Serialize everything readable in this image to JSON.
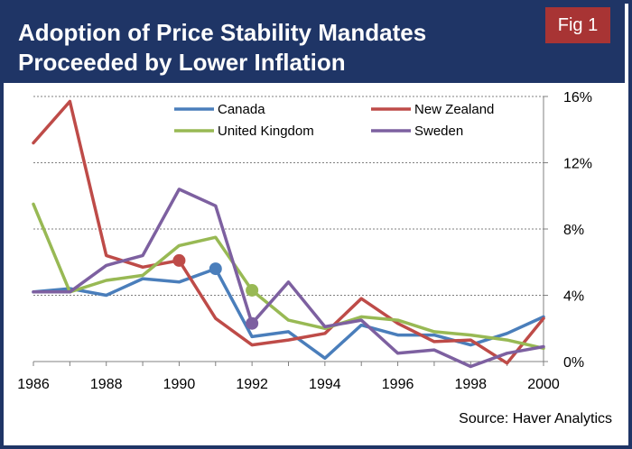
{
  "header": {
    "title": "Adoption of Price Stability Mandates\nProceeded by Lower Inflation",
    "fig_label": "Fig 1"
  },
  "source": "Source: Haver Analytics",
  "colors": {
    "frame": "#1f3566",
    "fig_label_bg": "#a83434"
  },
  "chart_data": {
    "type": "line",
    "title": "Adoption of Price Stability Mandates Proceeded by Lower Inflation",
    "xlabel": "",
    "ylabel": "",
    "x": [
      1986,
      1987,
      1988,
      1989,
      1990,
      1991,
      1992,
      1993,
      1994,
      1995,
      1996,
      1997,
      1998,
      1999,
      2000
    ],
    "xticks": [
      1986,
      1988,
      1990,
      1992,
      1994,
      1996,
      1998,
      2000
    ],
    "xtick_labels": [
      "1986",
      "1988",
      "1990",
      "1992",
      "1994",
      "1996",
      "1998",
      "2000"
    ],
    "xlim": [
      1986,
      2000
    ],
    "ylim": [
      0,
      16
    ],
    "yticks": [
      0,
      4,
      8,
      12,
      16
    ],
    "ytick_labels": [
      "0%",
      "4%",
      "8%",
      "12%",
      "16%"
    ],
    "grid": "horizontal dotted",
    "legend_position": "top",
    "series": [
      {
        "name": "Canada",
        "color": "#4a7ebb",
        "values": [
          4.2,
          4.4,
          4.0,
          5.0,
          4.8,
          5.6,
          1.5,
          1.8,
          0.2,
          2.2,
          1.6,
          1.6,
          1.0,
          1.7,
          2.7
        ],
        "marker_year": 1991
      },
      {
        "name": "New Zealand",
        "color": "#be4b48",
        "values": [
          13.2,
          15.7,
          6.4,
          5.7,
          6.1,
          2.6,
          1.0,
          1.3,
          1.7,
          3.8,
          2.3,
          1.2,
          1.3,
          -0.1,
          2.6
        ],
        "marker_year": 1990
      },
      {
        "name": "United Kingdom",
        "color": "#98b954",
        "values": [
          9.5,
          4.2,
          4.9,
          5.2,
          7.0,
          7.5,
          4.3,
          2.5,
          2.0,
          2.7,
          2.5,
          1.8,
          1.6,
          1.3,
          0.8
        ],
        "marker_year": 1992
      },
      {
        "name": "Sweden",
        "color": "#7d60a0",
        "values": [
          4.2,
          4.2,
          5.8,
          6.4,
          10.4,
          9.4,
          2.3,
          4.8,
          2.1,
          2.5,
          0.5,
          0.7,
          -0.3,
          0.5,
          0.9
        ],
        "marker_year": 1992
      }
    ],
    "legend": [
      {
        "name": "Canada",
        "color": "#4a7ebb"
      },
      {
        "name": "New Zealand",
        "color": "#be4b48"
      },
      {
        "name": "United Kingdom",
        "color": "#98b954"
      },
      {
        "name": "Sweden",
        "color": "#7d60a0"
      }
    ]
  }
}
